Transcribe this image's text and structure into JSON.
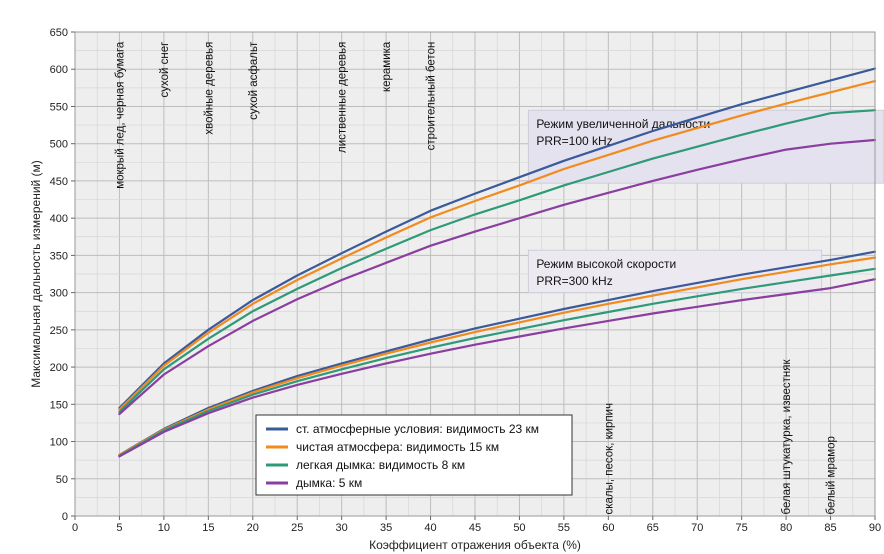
{
  "chart_data": {
    "type": "line",
    "xlabel": "Коэффициент отражения объекта (%)",
    "ylabel": "Максимальная дальность измерений (м)",
    "xlim": [
      0,
      90
    ],
    "ylim": [
      0,
      650
    ],
    "x_ticks": [
      0,
      5,
      10,
      15,
      20,
      25,
      30,
      35,
      40,
      45,
      50,
      55,
      60,
      65,
      70,
      75,
      80,
      85,
      90
    ],
    "y_ticks": [
      0,
      50,
      100,
      150,
      200,
      250,
      300,
      350,
      400,
      450,
      500,
      550,
      600,
      650
    ],
    "grid": true,
    "legend_position": "bottom-center",
    "legend": [
      {
        "label": "ст. атмосферные условия: видимость 23 км",
        "color": "#3a5a9c"
      },
      {
        "label": "чистая атмосфера: видимость 15 км",
        "color": "#f28a1c"
      },
      {
        "label": "легкая дымка: видимость 8 км",
        "color": "#2e9a78"
      },
      {
        "label": "дымка: 5 км",
        "color": "#8a3ea0"
      }
    ],
    "x": [
      5,
      10,
      15,
      20,
      25,
      30,
      35,
      40,
      45,
      50,
      55,
      60,
      65,
      70,
      75,
      80,
      85,
      90
    ],
    "groups": [
      {
        "note": [
          "Режим увеличенной дальности",
          "PRR=100 kHz"
        ],
        "series": [
          {
            "color": "#3a5a9c",
            "values": [
              145,
              205,
              250,
              290,
              323,
              353,
              382,
              410,
              433,
              455,
              477,
              497,
              517,
              535,
              553,
              569,
              585,
              601
            ]
          },
          {
            "color": "#f28a1c",
            "values": [
              143,
              202,
              246,
              285,
              317,
              346,
              374,
              401,
              423,
              444,
              466,
              485,
              504,
              521,
              538,
              554,
              569,
              584
            ]
          },
          {
            "color": "#2e9a78",
            "values": [
              140,
              197,
              238,
              275,
              305,
              333,
              359,
              384,
              405,
              424,
              444,
              462,
              480,
              496,
              512,
              527,
              541,
              545
            ]
          },
          {
            "color": "#8a3ea0",
            "values": [
              137,
              190,
              228,
              262,
              291,
              317,
              340,
              363,
              382,
              400,
              418,
              434,
              450,
              465,
              479,
              492,
              500,
              505
            ]
          }
        ]
      },
      {
        "note": [
          "Режим высокой скорости",
          "PRR=300 kHz"
        ],
        "series": [
          {
            "color": "#3a5a9c",
            "values": [
              82,
              117,
              145,
              168,
              188,
              205,
              221,
              237,
              252,
              265,
              278,
              290,
              302,
              313,
              324,
              334,
              344,
              355
            ]
          },
          {
            "color": "#f28a1c",
            "values": [
              82,
              116,
              143,
              166,
              185,
              202,
              218,
              233,
              247,
              260,
              273,
              285,
              296,
              307,
              318,
              328,
              338,
              347
            ]
          },
          {
            "color": "#2e9a78",
            "values": [
              81,
              115,
              141,
              163,
              181,
              197,
              212,
              226,
              239,
              251,
              263,
              274,
              285,
              295,
              305,
              314,
              323,
              332
            ]
          },
          {
            "color": "#8a3ea0",
            "values": [
              80,
              113,
              138,
              159,
              176,
              191,
              205,
              218,
              230,
              241,
              252,
              262,
              272,
              281,
              290,
              298,
              306,
              318
            ]
          }
        ]
      }
    ],
    "materials_top": [
      {
        "x": 5,
        "label": "мокрый лед, черная бумага"
      },
      {
        "x": 10,
        "label": "сухой снег"
      },
      {
        "x": 15,
        "label": "хвойные деревья"
      },
      {
        "x": 20,
        "label": "сухой асфальт"
      },
      {
        "x": 30,
        "label": "лиственные деревья"
      },
      {
        "x": 35,
        "label": "керамика"
      },
      {
        "x": 40,
        "label": "строительный бетон"
      }
    ],
    "materials_bottom": [
      {
        "x": 60,
        "label": "скалы, песок, кирпич"
      },
      {
        "x": 80,
        "label": "белая штукатурка, известняк"
      },
      {
        "x": 85,
        "label": "белый мрамор"
      }
    ]
  }
}
